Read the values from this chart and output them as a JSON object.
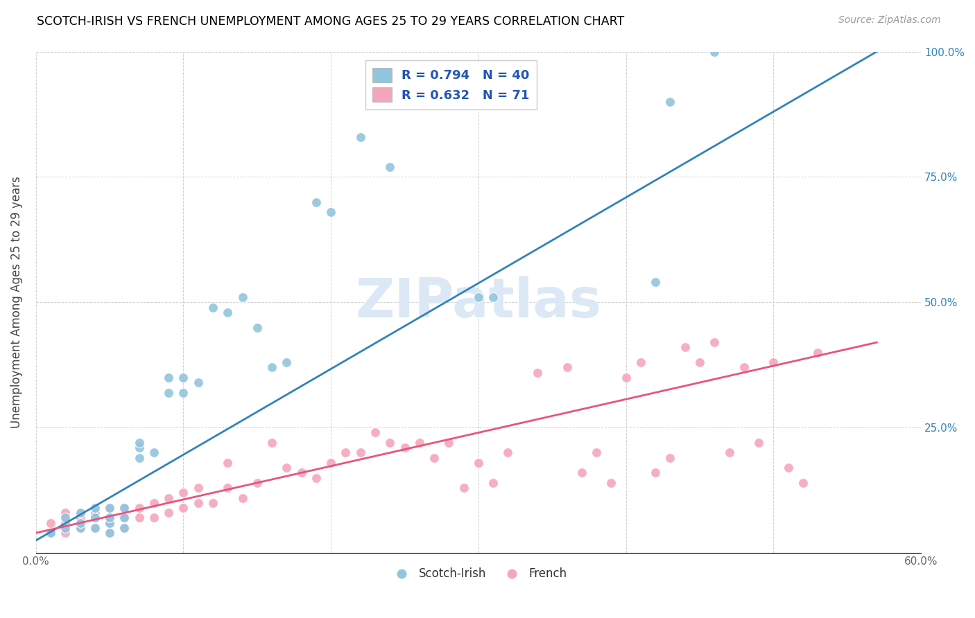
{
  "title": "SCOTCH-IRISH VS FRENCH UNEMPLOYMENT AMONG AGES 25 TO 29 YEARS CORRELATION CHART",
  "source": "Source: ZipAtlas.com",
  "ylabel": "Unemployment Among Ages 25 to 29 years",
  "xlim": [
    0.0,
    0.6
  ],
  "ylim": [
    0.0,
    1.0
  ],
  "xticks": [
    0.0,
    0.1,
    0.2,
    0.3,
    0.4,
    0.5,
    0.6
  ],
  "xticklabels": [
    "0.0%",
    "",
    "",
    "",
    "",
    "",
    "60.0%"
  ],
  "yticks": [
    0.0,
    0.25,
    0.5,
    0.75,
    1.0
  ],
  "yticklabels_right": [
    "",
    "25.0%",
    "50.0%",
    "75.0%",
    "100.0%"
  ],
  "blue_color": "#92c5de",
  "pink_color": "#f4a6bb",
  "blue_line_color": "#3182bd",
  "pink_line_color": "#e8547a",
  "blue_R": 0.794,
  "blue_N": 40,
  "pink_R": 0.632,
  "pink_N": 71,
  "watermark": "ZIPatlas",
  "blue_line_x0": 0.0,
  "blue_line_y0": 0.025,
  "blue_line_x1": 0.57,
  "blue_line_y1": 1.0,
  "pink_line_x0": 0.0,
  "pink_line_y0": 0.04,
  "pink_line_x1": 0.57,
  "pink_line_y1": 0.42,
  "blue_scatter_x": [
    0.01,
    0.02,
    0.02,
    0.03,
    0.03,
    0.03,
    0.04,
    0.04,
    0.04,
    0.05,
    0.05,
    0.05,
    0.05,
    0.06,
    0.06,
    0.06,
    0.07,
    0.07,
    0.07,
    0.08,
    0.09,
    0.09,
    0.1,
    0.1,
    0.11,
    0.12,
    0.13,
    0.14,
    0.15,
    0.16,
    0.17,
    0.19,
    0.2,
    0.22,
    0.24,
    0.3,
    0.31,
    0.42,
    0.43,
    0.46
  ],
  "blue_scatter_y": [
    0.04,
    0.05,
    0.07,
    0.05,
    0.06,
    0.08,
    0.05,
    0.07,
    0.09,
    0.04,
    0.06,
    0.07,
    0.09,
    0.05,
    0.07,
    0.09,
    0.19,
    0.21,
    0.22,
    0.2,
    0.32,
    0.35,
    0.32,
    0.35,
    0.34,
    0.49,
    0.48,
    0.51,
    0.45,
    0.37,
    0.38,
    0.7,
    0.68,
    0.83,
    0.77,
    0.51,
    0.51,
    0.54,
    0.9,
    1.0
  ],
  "pink_scatter_x": [
    0.01,
    0.01,
    0.02,
    0.02,
    0.02,
    0.02,
    0.03,
    0.03,
    0.03,
    0.03,
    0.04,
    0.04,
    0.04,
    0.05,
    0.05,
    0.05,
    0.05,
    0.06,
    0.06,
    0.06,
    0.07,
    0.07,
    0.08,
    0.08,
    0.09,
    0.09,
    0.1,
    0.1,
    0.11,
    0.11,
    0.12,
    0.13,
    0.13,
    0.14,
    0.15,
    0.16,
    0.17,
    0.18,
    0.19,
    0.2,
    0.21,
    0.22,
    0.23,
    0.24,
    0.25,
    0.26,
    0.27,
    0.28,
    0.29,
    0.3,
    0.31,
    0.32,
    0.34,
    0.36,
    0.37,
    0.38,
    0.39,
    0.4,
    0.41,
    0.42,
    0.43,
    0.44,
    0.45,
    0.46,
    0.47,
    0.48,
    0.49,
    0.5,
    0.51,
    0.52,
    0.53
  ],
  "pink_scatter_y": [
    0.04,
    0.06,
    0.04,
    0.06,
    0.07,
    0.08,
    0.05,
    0.06,
    0.07,
    0.08,
    0.05,
    0.07,
    0.08,
    0.04,
    0.06,
    0.07,
    0.09,
    0.05,
    0.07,
    0.09,
    0.07,
    0.09,
    0.07,
    0.1,
    0.08,
    0.11,
    0.09,
    0.12,
    0.1,
    0.13,
    0.1,
    0.13,
    0.18,
    0.11,
    0.14,
    0.22,
    0.17,
    0.16,
    0.15,
    0.18,
    0.2,
    0.2,
    0.24,
    0.22,
    0.21,
    0.22,
    0.19,
    0.22,
    0.13,
    0.18,
    0.14,
    0.2,
    0.36,
    0.37,
    0.16,
    0.2,
    0.14,
    0.35,
    0.38,
    0.16,
    0.19,
    0.41,
    0.38,
    0.42,
    0.2,
    0.37,
    0.22,
    0.38,
    0.17,
    0.14,
    0.4
  ]
}
